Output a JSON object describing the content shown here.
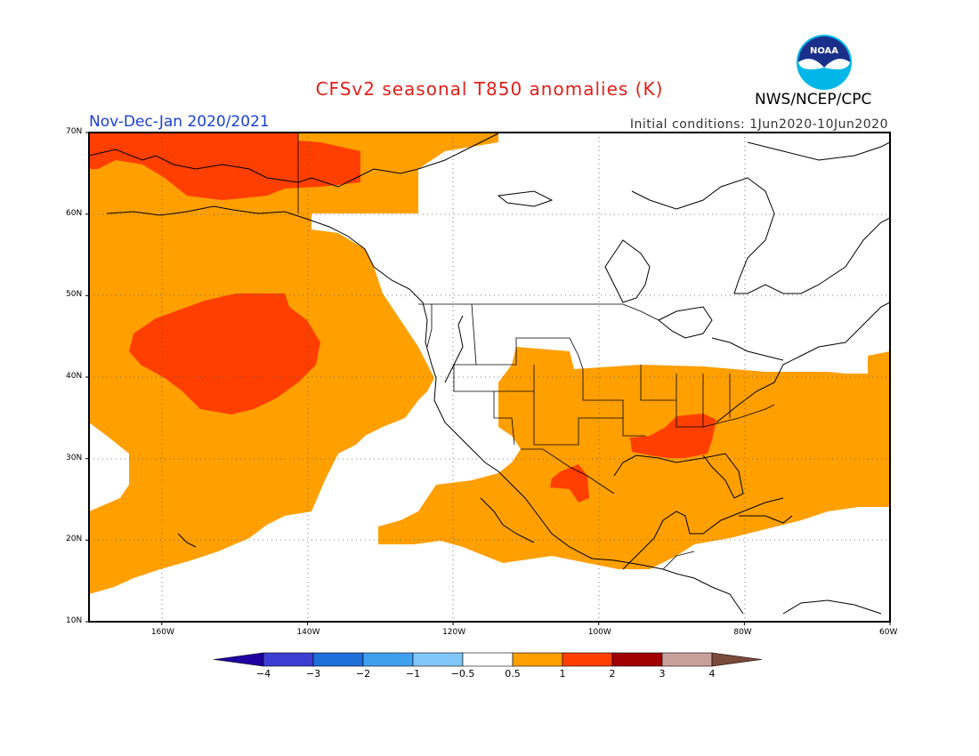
{
  "title": "CFSv2 seasonal T850 anomalies (K)",
  "organization": "NWS/NCEP/CPC",
  "logo_text": "NOAA",
  "period": "Nov-Dec-Jan 2020/2021",
  "initial_conditions": "Initial conditions: 1Jun2020-10Jun2020",
  "map": {
    "extent": {
      "lon_min": -170,
      "lon_max": -60,
      "lat_min": 10,
      "lat_max": 70
    },
    "lat_labels": [
      {
        "value": 70,
        "text": "70N"
      },
      {
        "value": 60,
        "text": "60N"
      },
      {
        "value": 50,
        "text": "50N"
      },
      {
        "value": 40,
        "text": "40N"
      },
      {
        "value": 30,
        "text": "30N"
      },
      {
        "value": 20,
        "text": "20N"
      },
      {
        "value": 10,
        "text": "10N"
      }
    ],
    "lon_labels": [
      {
        "value": -160,
        "text": "160W"
      },
      {
        "value": -140,
        "text": "140W"
      },
      {
        "value": -120,
        "text": "120W"
      },
      {
        "value": -100,
        "text": "100W"
      },
      {
        "value": -80,
        "text": "80W"
      },
      {
        "value": -60,
        "text": "60W"
      }
    ],
    "anomaly_regions": [
      {
        "name": "alaska-bering-positive",
        "level": "1 to 2 K",
        "color": "#ff3f00"
      },
      {
        "name": "northeast-pacific-positive",
        "level": "0.5 to 1 K",
        "color": "#ff9f00"
      },
      {
        "name": "north-pacific-core-positive",
        "level": "1 to 2 K",
        "color": "#ff3f00"
      },
      {
        "name": "eastern-us-mexico-positive",
        "level": "0.5 to 1 K",
        "color": "#ff9f00"
      },
      {
        "name": "southeast-us-core-positive",
        "level": "1 to 2 K",
        "color": "#ff3f00"
      },
      {
        "name": "mexico-core-positive",
        "level": "1 to 2 K",
        "color": "#ff3f00"
      }
    ]
  },
  "colorbar": {
    "colors": [
      "#1f00a0",
      "#3b3ed1",
      "#1e6fd8",
      "#3fa0f0",
      "#80c6f8",
      "#ffffff",
      "#ff9f00",
      "#ff3f00",
      "#a00000",
      "#c8a09a",
      "#7a4a3a"
    ],
    "labels": [
      "-4",
      "-3",
      "-2",
      "-1",
      "-0.5",
      "0.5",
      "1",
      "2",
      "3",
      "4"
    ]
  }
}
